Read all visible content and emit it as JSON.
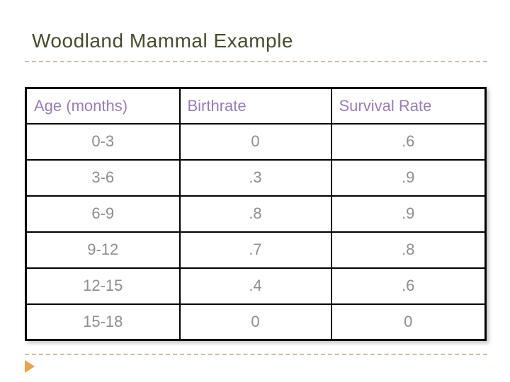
{
  "slide": {
    "title": "Woodland Mammal Example",
    "colors": {
      "title_text": "#494b2d",
      "table_header_text": "#9b7bb9",
      "table_cell_text": "#8e8e8e",
      "divider_dash": "#cdc098",
      "arrow_accent": "#efa148",
      "table_border": "#000000",
      "background": "#ffffff"
    }
  },
  "table": {
    "columns": [
      "Age (months)",
      "Birthrate",
      "Survival Rate"
    ],
    "rows": [
      [
        "0-3",
        "0",
        ".6"
      ],
      [
        "3-6",
        ".3",
        ".9"
      ],
      [
        "6-9",
        ".8",
        ".9"
      ],
      [
        "9-12",
        ".7",
        ".8"
      ],
      [
        "12-15",
        ".4",
        ".6"
      ],
      [
        "15-18",
        "0",
        "0"
      ]
    ]
  },
  "chart_data": {
    "type": "table",
    "title": "Woodland Mammal Example",
    "columns": [
      "Age (months)",
      "Birthrate",
      "Survival Rate"
    ],
    "rows": [
      {
        "age_months": "0-3",
        "birthrate": 0.0,
        "survival_rate": 0.6
      },
      {
        "age_months": "3-6",
        "birthrate": 0.3,
        "survival_rate": 0.9
      },
      {
        "age_months": "6-9",
        "birthrate": 0.8,
        "survival_rate": 0.9
      },
      {
        "age_months": "9-12",
        "birthrate": 0.7,
        "survival_rate": 0.8
      },
      {
        "age_months": "12-15",
        "birthrate": 0.4,
        "survival_rate": 0.6
      },
      {
        "age_months": "15-18",
        "birthrate": 0.0,
        "survival_rate": 0.0
      }
    ]
  }
}
